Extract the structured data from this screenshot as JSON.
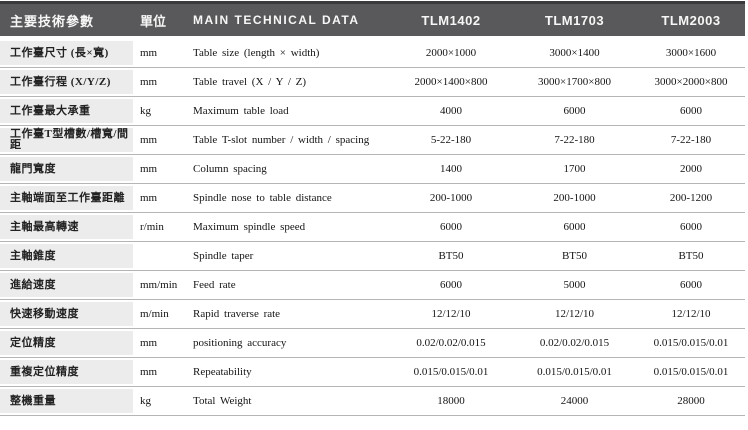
{
  "table": {
    "header": {
      "param_col": "主要技術參數",
      "unit_col": "單位",
      "data_col": "MAIN TECHNICAL DATA",
      "models": [
        "TLM1402",
        "TLM1703",
        "TLM2003"
      ]
    },
    "rows": [
      {
        "param": "工作臺尺寸 (長×寬)",
        "unit": "mm",
        "name_en": "Table size (length × width)",
        "values": [
          "2000×1000",
          "3000×1400",
          "3000×1600"
        ]
      },
      {
        "param": "工作臺行程 (X/Y/Z)",
        "unit": "mm",
        "name_en": "Table travel (X / Y / Z)",
        "values": [
          "2000×1400×800",
          "3000×1700×800",
          "3000×2000×800"
        ]
      },
      {
        "param": "工作臺最大承重",
        "unit": "kg",
        "name_en": "Maximum table load",
        "values": [
          "4000",
          "6000",
          "6000"
        ]
      },
      {
        "param": "工作臺T型槽數/槽寬/間距",
        "unit": "mm",
        "name_en": "Table T-slot number / width / spacing",
        "values": [
          "5-22-180",
          "7-22-180",
          "7-22-180"
        ]
      },
      {
        "param": "龍門寬度",
        "unit": "mm",
        "name_en": "Column spacing",
        "values": [
          "1400",
          "1700",
          "2000"
        ]
      },
      {
        "param": "主軸端面至工作臺距離",
        "unit": "mm",
        "name_en": "Spindle nose to table distance",
        "values": [
          "200-1000",
          "200-1000",
          "200-1200"
        ]
      },
      {
        "param": "主軸最高轉速",
        "unit": "r/min",
        "name_en": "Maximum spindle speed",
        "values": [
          "6000",
          "6000",
          "6000"
        ]
      },
      {
        "param": "主軸錐度",
        "unit": "",
        "name_en": "Spindle taper",
        "values": [
          "BT50",
          "BT50",
          "BT50"
        ]
      },
      {
        "param": "進給速度",
        "unit": "mm/min",
        "name_en": "Feed rate",
        "values": [
          "6000",
          "5000",
          "6000"
        ]
      },
      {
        "param": "快速移動速度",
        "unit": "m/min",
        "name_en": "Rapid traverse rate",
        "values": [
          "12/12/10",
          "12/12/10",
          "12/12/10"
        ]
      },
      {
        "param": "定位精度",
        "unit": "mm",
        "name_en": "positioning accuracy",
        "values": [
          "0.02/0.02/0.015",
          "0.02/0.02/0.015",
          "0.015/0.015/0.01"
        ]
      },
      {
        "param": "重複定位精度",
        "unit": "mm",
        "name_en": "Repeatability",
        "values": [
          "0.015/0.015/0.01",
          "0.015/0.015/0.01",
          "0.015/0.015/0.01"
        ]
      },
      {
        "param": "整機重量",
        "unit": "kg",
        "name_en": "Total Weight",
        "values": [
          "18000",
          "24000",
          "28000"
        ]
      }
    ]
  },
  "colors": {
    "header_bg": "#59595b",
    "header_top_border": "#3a3a3c",
    "header_text": "#f7f7f7",
    "param_col_bg": "#ececec",
    "row_divider": "#b5b5b5",
    "body_text": "#141414"
  }
}
